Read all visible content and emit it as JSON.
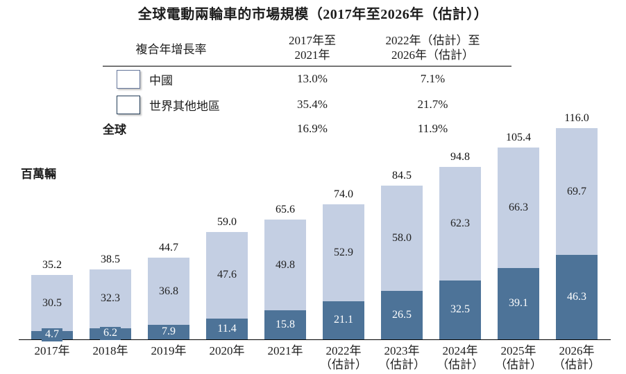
{
  "title": "全球電動兩輪車的市場規模（2017年至2026年（估計））",
  "unit_label": "百萬輛",
  "cagr_table": {
    "header": {
      "label": "複合年增長率",
      "col1_line1": "2017年至",
      "col1_line2": "2021年",
      "col2_line1": "2022年（估計）至",
      "col2_line2": "2026年（估計）"
    },
    "rows": [
      {
        "swatch": "china",
        "label": "中國",
        "v1": "13.0%",
        "v2": "7.1%"
      },
      {
        "swatch": "row",
        "label": "世界其他地區",
        "v1": "35.4%",
        "v2": "21.7%"
      },
      {
        "swatch": "none",
        "label": "全球",
        "v1": "16.9%",
        "v2": "11.9%"
      }
    ]
  },
  "colors": {
    "china_fill": "#c4cfe3",
    "rest_of_world_fill": "#4d7398"
  },
  "chart_data": {
    "type": "bar",
    "stacked": true,
    "title": "全球電動兩輪車的市場規模（2017年至2026年（估計））",
    "ylabel": "百萬輛",
    "ylim": [
      0,
      120
    ],
    "grid": false,
    "legend_position": "top-table",
    "categories": [
      "2017年",
      "2018年",
      "2019年",
      "2020年",
      "2021年",
      "2022年（估計）",
      "2023年（估計）",
      "2024年（估計）",
      "2025年（估計）",
      "2026年（估計）"
    ],
    "estimated_note": "（估計）",
    "series": [
      {
        "name": "世界其他地區",
        "color": "#4d7398",
        "values": [
          4.7,
          6.2,
          7.9,
          11.4,
          15.8,
          21.1,
          26.5,
          32.5,
          39.1,
          46.3
        ]
      },
      {
        "name": "中國",
        "color": "#c4cfe3",
        "values": [
          30.5,
          32.3,
          36.8,
          47.6,
          49.8,
          52.9,
          58.0,
          62.3,
          66.3,
          69.7
        ]
      }
    ],
    "totals": [
      35.2,
      38.5,
      44.7,
      59.0,
      65.6,
      74.0,
      84.5,
      94.8,
      105.4,
      116.0
    ],
    "cagr": {
      "中國": {
        "2017-2021": "13.0%",
        "2022-2026": "7.1%"
      },
      "世界其他地區": {
        "2017-2021": "35.4%",
        "2022-2026": "21.7%"
      },
      "全球": {
        "2017-2021": "16.9%",
        "2022-2026": "11.9%"
      }
    }
  }
}
